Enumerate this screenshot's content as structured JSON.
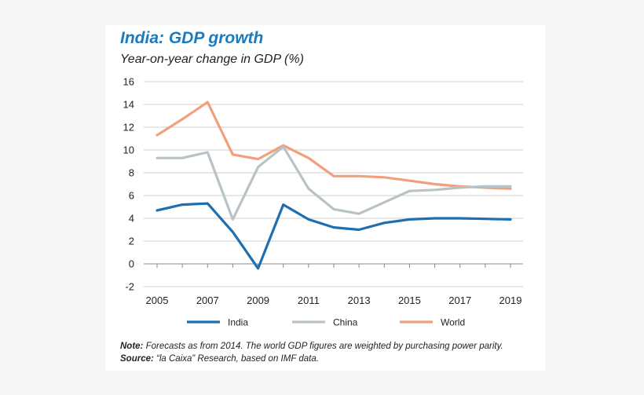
{
  "chart_data": {
    "type": "line",
    "title": "India: GDP growth",
    "subtitle": "Year-on-year change in GDP (%)",
    "xlabel": "",
    "ylabel": "",
    "x": [
      2005,
      2006,
      2007,
      2008,
      2009,
      2010,
      2011,
      2012,
      2013,
      2014,
      2015,
      2016,
      2017,
      2018,
      2019
    ],
    "xticks": [
      "2005",
      "2007",
      "2009",
      "2011",
      "2013",
      "2015",
      "2017",
      "2019"
    ],
    "xtick_values": [
      2005,
      2007,
      2009,
      2011,
      2013,
      2015,
      2017,
      2019
    ],
    "yticks": [
      "16",
      "14",
      "12",
      "10",
      "8",
      "6",
      "4",
      "2",
      "0",
      "-2"
    ],
    "ytick_values": [
      16,
      14,
      12,
      10,
      8,
      6,
      4,
      2,
      0,
      -2
    ],
    "ylim": [
      -2,
      16
    ],
    "xlim": [
      2005,
      2019
    ],
    "grid": true,
    "legend_position": "bottom",
    "series": [
      {
        "name": "India",
        "color": "#1f6fb0",
        "values": [
          4.7,
          5.2,
          5.3,
          2.8,
          -0.4,
          5.2,
          3.9,
          3.2,
          3.0,
          3.6,
          3.9,
          4.0,
          4.0,
          3.95,
          3.9
        ]
      },
      {
        "name": "China",
        "color": "#b9c3c7",
        "values": [
          9.3,
          9.3,
          9.8,
          3.9,
          8.5,
          10.3,
          6.6,
          4.8,
          4.4,
          5.4,
          6.4,
          6.5,
          6.7,
          6.8,
          6.8
        ]
      },
      {
        "name": "World",
        "color": "#f0a07c",
        "values": [
          11.3,
          12.7,
          14.2,
          9.6,
          9.2,
          10.4,
          9.3,
          7.7,
          7.7,
          7.6,
          7.3,
          7.0,
          6.8,
          6.7,
          6.6
        ]
      }
    ]
  },
  "notes": {
    "note_label": "Note:",
    "note_text": " Forecasts as from 2014. The world GDP figures are weighted by purchasing power parity.",
    "source_label": "Source:",
    "source_text": " “la Caixa” Research, based on IMF data."
  }
}
